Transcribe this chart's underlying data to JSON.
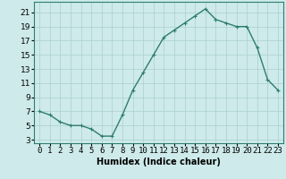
{
  "x": [
    0,
    1,
    2,
    3,
    4,
    5,
    6,
    7,
    8,
    9,
    10,
    11,
    12,
    13,
    14,
    15,
    16,
    17,
    18,
    19,
    20,
    21,
    22,
    23
  ],
  "y": [
    7,
    6.5,
    5.5,
    5,
    5,
    4.5,
    3.5,
    3.5,
    6.5,
    10,
    12.5,
    15,
    17.5,
    18.5,
    19.5,
    20.5,
    21.5,
    20,
    19.5,
    19,
    19,
    16,
    11.5,
    10
  ],
  "line_color": "#2e7d6e",
  "marker": "+",
  "marker_size": 3.5,
  "marker_lw": 0.8,
  "line_width": 1.0,
  "bg_color": "#ceeaea",
  "grid_color": "#aacfcf",
  "xlabel": "Humidex (Indice chaleur)",
  "xlabel_fontsize": 7,
  "xlabel_fontweight": "bold",
  "ytick_vals": [
    3,
    5,
    7,
    9,
    11,
    13,
    15,
    17,
    19,
    21
  ],
  "xlim": [
    -0.5,
    23.5
  ],
  "ylim": [
    2.5,
    22.5
  ],
  "tick_fontsize": 6.5,
  "spine_color": "#2e7d6e"
}
